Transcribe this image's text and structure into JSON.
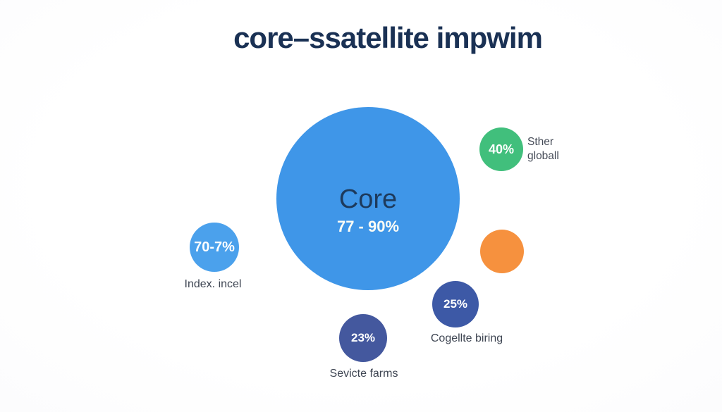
{
  "title": {
    "text": "core–ssatellite impwim",
    "color": "#1a3154"
  },
  "core": {
    "label": "Core",
    "range": "77 - 90%",
    "color": "#3f96e8",
    "label_color": "#1d3a5c",
    "range_color": "#ffffff"
  },
  "satellites": {
    "global": {
      "value": "40%",
      "label_line1": "Sther",
      "label_line2": "globall",
      "color": "#41bf7c"
    },
    "index": {
      "value": "70-7%",
      "label": "Index. incel",
      "color": "#4ba1ec"
    },
    "orange": {
      "color": "#f6913e"
    },
    "blend": {
      "value": "25%",
      "label": "Cogellte biring",
      "color": "#3d59a6"
    },
    "service": {
      "value": "23%",
      "label": "Sevicte farms",
      "color": "#44589e"
    }
  }
}
